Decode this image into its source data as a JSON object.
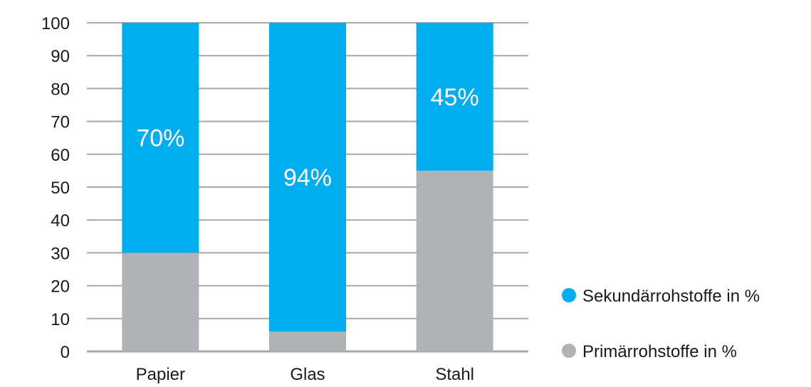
{
  "chart_data": {
    "type": "bar",
    "stacked": true,
    "categories": [
      "Papier",
      "Glas",
      "Stahl"
    ],
    "series": [
      {
        "name": "Primärrohstoffe in %",
        "values": [
          30,
          6,
          55
        ],
        "color": "#b1b2b6"
      },
      {
        "name": "Sekundärrohstoffe in %",
        "values": [
          70,
          94,
          45
        ],
        "color": "#00adef"
      }
    ],
    "data_labels": [
      "70%",
      "94%",
      "45%"
    ],
    "ylim": [
      0,
      100
    ],
    "yticks": [
      0,
      10,
      20,
      30,
      40,
      50,
      60,
      70,
      80,
      90,
      100
    ],
    "grid": true,
    "legend_position": "bottom-right",
    "legend_order": [
      "Sekundärrohstoffe in %",
      "Primärrohstoffe in %"
    ]
  }
}
